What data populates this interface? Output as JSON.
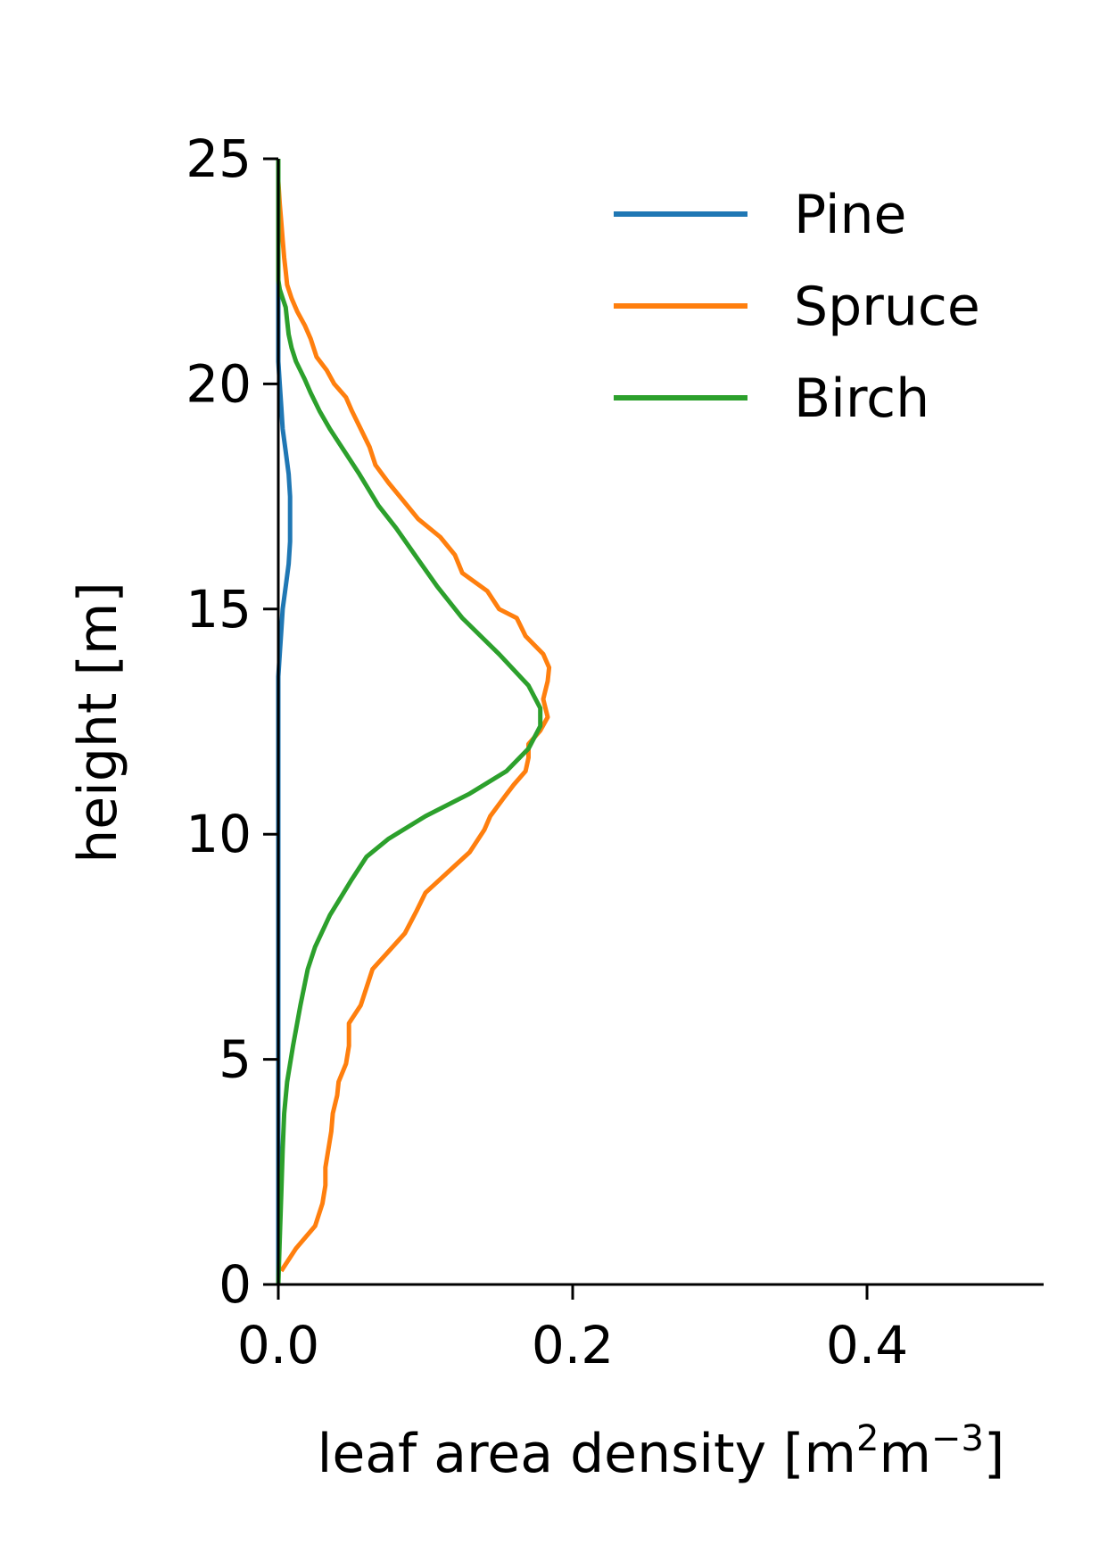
{
  "chart_data": {
    "type": "line",
    "title": "",
    "xlabel": "leaf area density [m",
    "xlabel_sup1": "2",
    "xlabel_mid": "m",
    "xlabel_sup2": "−3",
    "xlabel_end": "]",
    "ylabel": "height [m]",
    "xlim": [
      0,
      0.52
    ],
    "ylim": [
      0,
      25
    ],
    "xticks": [
      0.0,
      0.2,
      0.4
    ],
    "xtick_labels": [
      "0.0",
      "0.2",
      "0.4"
    ],
    "yticks": [
      0,
      5,
      10,
      15,
      20,
      25
    ],
    "ytick_labels": [
      "0",
      "5",
      "10",
      "15",
      "20",
      "25"
    ],
    "grid": false,
    "legend_position": "top-right",
    "series": [
      {
        "name": "Pine",
        "color": "#1f77b4",
        "x": [
          0.0,
          0.0,
          0.0,
          0.0,
          0.0,
          0.0,
          0.0,
          0.0,
          0.0,
          0.0,
          0.0,
          0.0,
          0.0,
          0.0,
          0.0,
          0.0,
          0.0,
          0.0,
          0.0,
          0.0,
          0.0,
          0.0,
          0.0,
          0.0,
          0.0,
          0.0,
          0.0,
          0.0,
          0.001,
          0.002,
          0.003,
          0.005,
          0.007,
          0.008,
          0.008,
          0.008,
          0.007,
          0.005,
          0.003,
          0.002,
          0.001,
          0.0,
          0.0,
          0.0,
          0.0,
          0.0,
          0.0,
          0.0,
          0.0,
          0.0,
          0.0
        ],
        "y": [
          0.0,
          0.5,
          1.0,
          1.5,
          2.0,
          2.5,
          3.0,
          3.5,
          4.0,
          4.5,
          5.0,
          5.5,
          6.0,
          6.5,
          7.0,
          7.5,
          8.0,
          8.5,
          9.0,
          9.5,
          10.0,
          10.5,
          11.0,
          11.5,
          12.0,
          12.5,
          13.0,
          13.5,
          14.0,
          14.5,
          15.0,
          15.5,
          16.0,
          16.5,
          17.0,
          17.5,
          18.0,
          18.5,
          19.0,
          19.5,
          20.0,
          20.5,
          21.0,
          21.5,
          22.0,
          22.5,
          23.0,
          23.5,
          24.0,
          24.5,
          25.0
        ]
      },
      {
        "name": "Spruce",
        "color": "#ff7f0e",
        "x": [
          0.002,
          0.012,
          0.025,
          0.03,
          0.032,
          0.032,
          0.034,
          0.036,
          0.037,
          0.04,
          0.041,
          0.046,
          0.048,
          0.048,
          0.056,
          0.06,
          0.064,
          0.075,
          0.086,
          0.094,
          0.1,
          0.11,
          0.12,
          0.13,
          0.14,
          0.144,
          0.153,
          0.16,
          0.168,
          0.17,
          0.17,
          0.178,
          0.183,
          0.18,
          0.183,
          0.184,
          0.18,
          0.168,
          0.162,
          0.15,
          0.142,
          0.125,
          0.12,
          0.11,
          0.095,
          0.085,
          0.075,
          0.066,
          0.062,
          0.056,
          0.05,
          0.046,
          0.038,
          0.033,
          0.026,
          0.022,
          0.018,
          0.013,
          0.009,
          0.006,
          0.005,
          0.004,
          0.003,
          0.002,
          0.001,
          0.0,
          0.0
        ],
        "y": [
          0.3,
          0.8,
          1.3,
          1.8,
          2.2,
          2.6,
          3.0,
          3.4,
          3.8,
          4.2,
          4.5,
          4.9,
          5.3,
          5.8,
          6.2,
          6.6,
          7.0,
          7.4,
          7.8,
          8.3,
          8.7,
          9.0,
          9.3,
          9.6,
          10.1,
          10.4,
          10.8,
          11.1,
          11.4,
          11.7,
          12.0,
          12.3,
          12.6,
          13.0,
          13.4,
          13.7,
          14.0,
          14.4,
          14.8,
          15.0,
          15.4,
          15.8,
          16.2,
          16.6,
          17.0,
          17.4,
          17.8,
          18.2,
          18.6,
          19.0,
          19.4,
          19.7,
          20.0,
          20.3,
          20.6,
          21.0,
          21.3,
          21.6,
          21.9,
          22.2,
          22.5,
          22.8,
          23.2,
          23.6,
          24.0,
          24.5,
          25.0
        ]
      },
      {
        "name": "Birch",
        "color": "#2ca02c",
        "x": [
          0.0,
          0.001,
          0.002,
          0.003,
          0.004,
          0.006,
          0.01,
          0.015,
          0.02,
          0.025,
          0.035,
          0.05,
          0.06,
          0.075,
          0.1,
          0.13,
          0.155,
          0.17,
          0.178,
          0.178,
          0.17,
          0.15,
          0.125,
          0.108,
          0.095,
          0.08,
          0.068,
          0.055,
          0.045,
          0.035,
          0.028,
          0.022,
          0.018,
          0.012,
          0.009,
          0.007,
          0.006,
          0.005,
          0.003,
          0.001,
          0.0,
          0.0,
          0.0,
          0.0
        ],
        "y": [
          0.0,
          1.0,
          2.0,
          3.0,
          3.8,
          4.5,
          5.3,
          6.2,
          7.0,
          7.5,
          8.2,
          9.0,
          9.5,
          9.9,
          10.4,
          10.9,
          11.4,
          11.9,
          12.4,
          12.8,
          13.3,
          14.0,
          14.8,
          15.5,
          16.1,
          16.8,
          17.3,
          18.0,
          18.5,
          19.0,
          19.4,
          19.8,
          20.1,
          20.5,
          20.8,
          21.1,
          21.4,
          21.7,
          21.9,
          22.1,
          22.3,
          23.0,
          24.0,
          25.0
        ]
      }
    ]
  }
}
